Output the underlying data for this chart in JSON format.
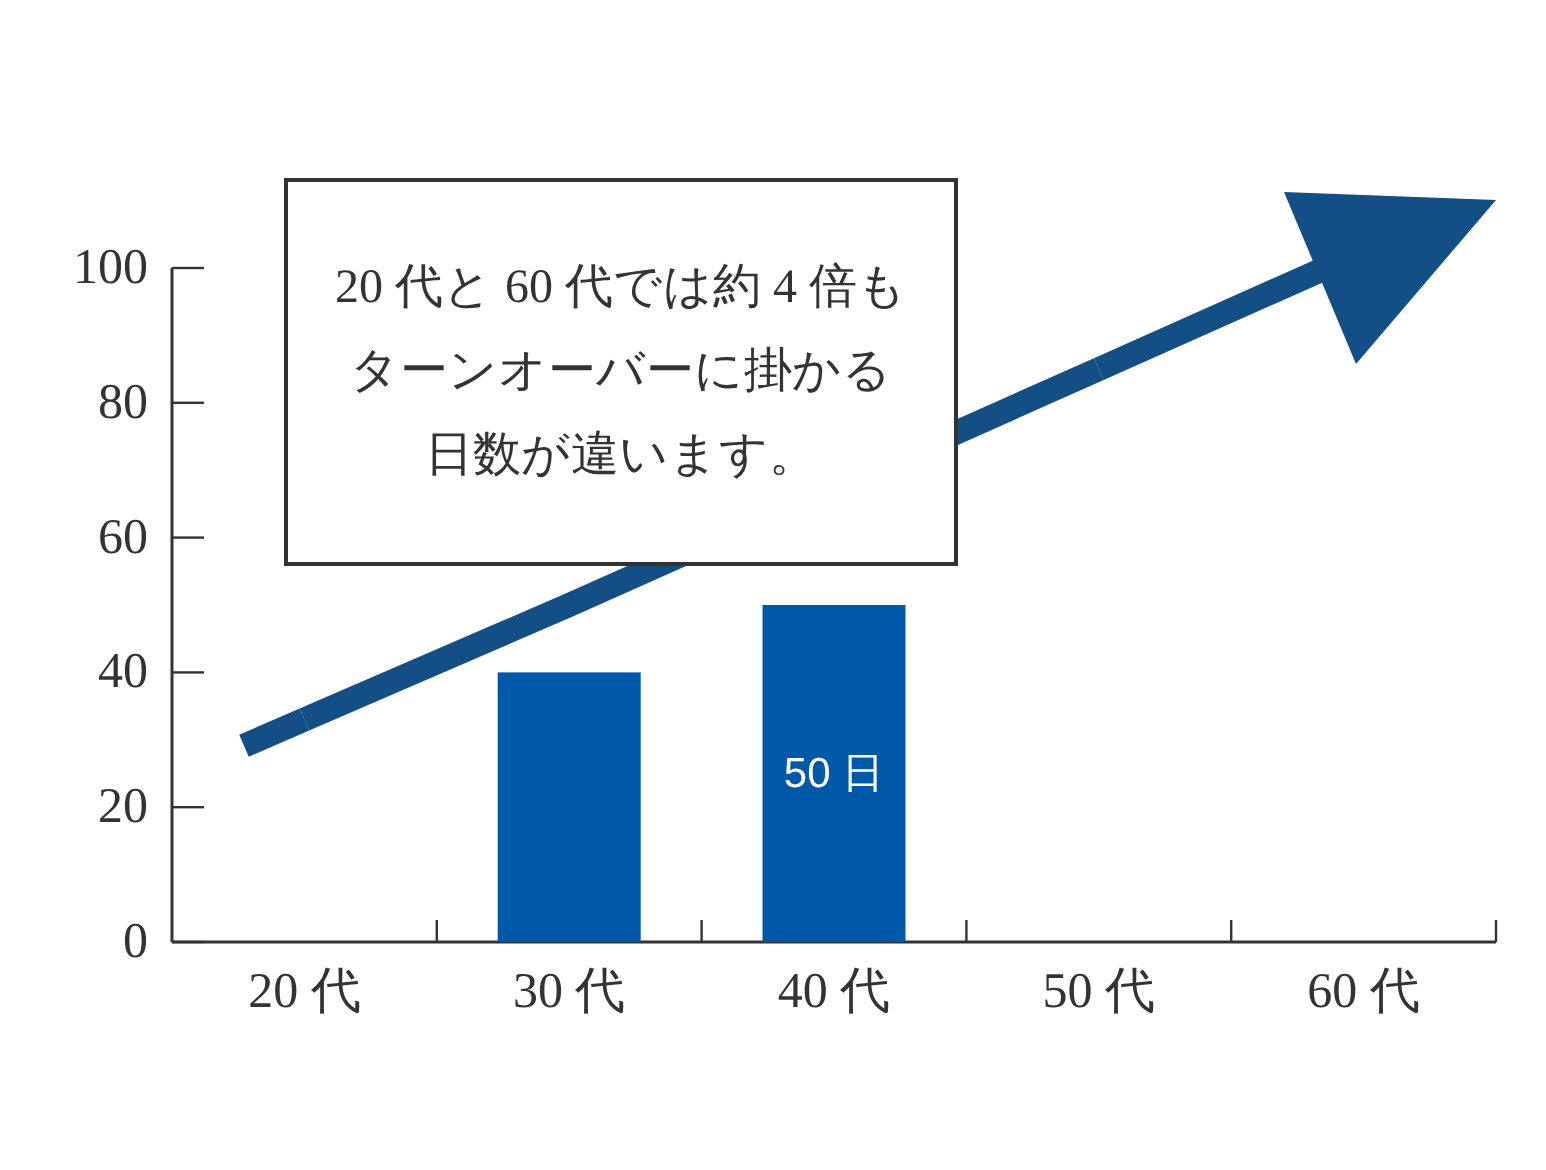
{
  "chart_data": {
    "type": "bar",
    "categories": [
      "20 代",
      "30 代",
      "40 代",
      "50 代",
      "60 代"
    ],
    "series": [
      {
        "color": "#0058a8",
        "values": [
          null,
          40,
          50,
          null,
          null
        ],
        "value_labels": [
          null,
          null,
          "50 日",
          null,
          null
        ]
      },
      {
        "type": "line",
        "color": "#134f84",
        "x": [
          "20 代",
          "30 代",
          "50 代"
        ],
        "values": [
          33,
          50,
          85
        ]
      }
    ],
    "ylim": [
      0,
      100
    ],
    "yticks": [
      0,
      20,
      40,
      60,
      80,
      100
    ],
    "annotations": [
      "20 代と 60 代では約 4 倍も",
      "ターンオーバーに掛かる",
      "日数が違います。"
    ]
  }
}
